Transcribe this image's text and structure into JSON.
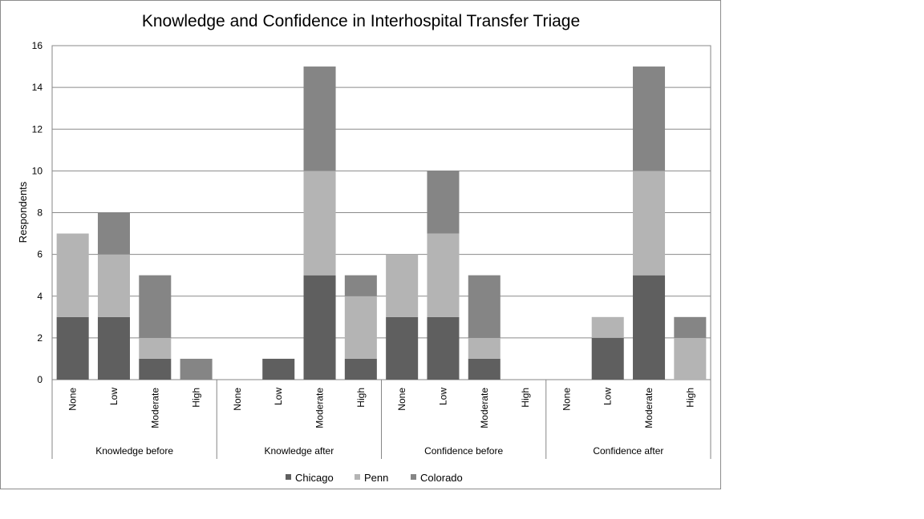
{
  "chart_data": {
    "type": "bar",
    "stacked": true,
    "title": "Knowledge and Confidence in Interhospital Transfer Triage",
    "ylabel": "Respondents",
    "xlabel": "",
    "ylim": [
      0,
      16
    ],
    "yticks": [
      0,
      2,
      4,
      6,
      8,
      10,
      12,
      14,
      16
    ],
    "grid": true,
    "legend_position": "bottom",
    "groups": [
      {
        "name": "Knowledge before",
        "categories": [
          "None",
          "Low",
          "Moderate",
          "High"
        ],
        "series_values": {
          "Chicago": [
            3,
            3,
            1,
            0
          ],
          "Penn": [
            4,
            3,
            1,
            0
          ],
          "Colorado": [
            0,
            2,
            3,
            1
          ]
        }
      },
      {
        "name": "Knowledge after",
        "categories": [
          "None",
          "Low",
          "Moderate",
          "High"
        ],
        "series_values": {
          "Chicago": [
            0,
            1,
            5,
            1
          ],
          "Penn": [
            0,
            0,
            5,
            3
          ],
          "Colorado": [
            0,
            0,
            5,
            1
          ]
        }
      },
      {
        "name": "Confidence before",
        "categories": [
          "None",
          "Low",
          "Moderate",
          "High"
        ],
        "series_values": {
          "Chicago": [
            3,
            3,
            1,
            0
          ],
          "Penn": [
            3,
            4,
            1,
            0
          ],
          "Colorado": [
            0,
            3,
            3,
            0
          ]
        }
      },
      {
        "name": "Confidence after",
        "categories": [
          "None",
          "Low",
          "Moderate",
          "High"
        ],
        "series_values": {
          "Chicago": [
            0,
            2,
            5,
            0
          ],
          "Penn": [
            0,
            1,
            5,
            2
          ],
          "Colorado": [
            0,
            0,
            5,
            1
          ]
        }
      }
    ],
    "series": [
      {
        "name": "Chicago",
        "color": "#5f5f5f"
      },
      {
        "name": "Penn",
        "color": "#b4b4b4"
      },
      {
        "name": "Colorado",
        "color": "#858585"
      }
    ]
  }
}
